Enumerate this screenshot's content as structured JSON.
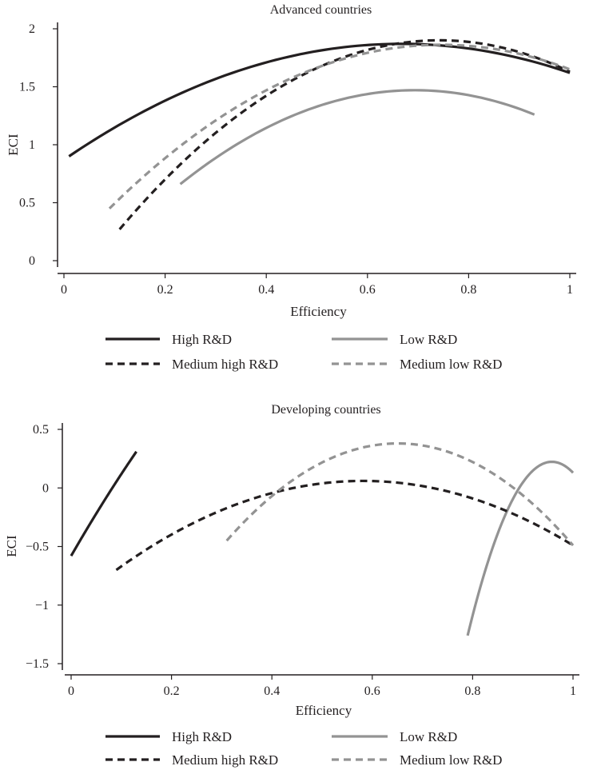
{
  "chart_data": [
    {
      "type": "line",
      "title": "Advanced countries",
      "xlabel": "Efficiency",
      "ylabel": "ECI",
      "xlim": [
        0,
        1
      ],
      "ylim": [
        0,
        2
      ],
      "x_ticks": [
        "0",
        "0.2",
        "0.4",
        "0.6",
        "0.8",
        "1"
      ],
      "x_tick_values": [
        0,
        0.2,
        0.4,
        0.6,
        0.8,
        1
      ],
      "y_ticks": [
        "0",
        "0.5",
        "1",
        "1.5",
        "2"
      ],
      "y_tick_values": [
        0,
        0.5,
        1,
        1.5,
        2
      ],
      "legend": [
        "High R&D",
        "Low R&D",
        "Medium high R&D",
        "Medium low R&D"
      ],
      "series": [
        {
          "name": "High R&D",
          "color": "#231f20",
          "dash": "solid",
          "x_range": [
            0.01,
            1.0
          ],
          "x": [
            0.01,
            0.67,
            1.0
          ],
          "y": [
            0.9,
            1.87,
            1.62
          ]
        },
        {
          "name": "Low R&D",
          "color": "#939393",
          "dash": "solid",
          "x_range": [
            0.23,
            0.93
          ],
          "x": [
            0.23,
            0.7,
            0.93
          ],
          "y": [
            0.66,
            1.47,
            1.26
          ]
        },
        {
          "name": "Medium high R&D",
          "color": "#231f20",
          "dash": "dashed",
          "x_range": [
            0.11,
            1.0
          ],
          "x": [
            0.11,
            0.73,
            1.0
          ],
          "y": [
            0.27,
            1.9,
            1.63
          ]
        },
        {
          "name": "Medium low R&D",
          "color": "#939393",
          "dash": "dashed",
          "x_range": [
            0.09,
            1.0
          ],
          "x": [
            0.09,
            0.72,
            1.0
          ],
          "y": [
            0.45,
            1.86,
            1.65
          ]
        }
      ]
    },
    {
      "type": "line",
      "title": "Developing countries",
      "xlabel": "Efficiency",
      "ylabel": "ECI",
      "xlim": [
        0,
        1
      ],
      "ylim": [
        -1.5,
        0.5
      ],
      "x_ticks": [
        "0",
        "0.2",
        "0.4",
        "0.6",
        "0.8",
        "1"
      ],
      "x_tick_values": [
        0,
        0.2,
        0.4,
        0.6,
        0.8,
        1
      ],
      "y_ticks": [
        "−1.5",
        "−1",
        "−0.5",
        "0",
        "0.5"
      ],
      "y_tick_values": [
        -1.5,
        -1,
        -0.5,
        0,
        0.5
      ],
      "legend": [
        "High R&D",
        "Low R&D",
        "Medium high R&D",
        "Medium low R&D"
      ],
      "series": [
        {
          "name": "High R&D",
          "color": "#231f20",
          "dash": "solid",
          "x_range": [
            0.0,
            0.13
          ],
          "x": [
            0.0,
            0.06,
            0.13
          ],
          "y": [
            -0.58,
            -0.15,
            0.31
          ]
        },
        {
          "name": "Low R&D",
          "color": "#939393",
          "dash": "solid",
          "x_range": [
            0.79,
            1.0
          ],
          "x": [
            0.79,
            0.95,
            1.0
          ],
          "y": [
            -1.26,
            0.22,
            0.13
          ]
        },
        {
          "name": "Medium high R&D",
          "color": "#231f20",
          "dash": "dashed",
          "x_range": [
            0.09,
            1.0
          ],
          "x": [
            0.09,
            0.58,
            1.0
          ],
          "y": [
            -0.7,
            0.06,
            -0.49
          ]
        },
        {
          "name": "Medium low R&D",
          "color": "#939393",
          "dash": "dashed",
          "x_range": [
            0.31,
            1.0
          ],
          "x": [
            0.31,
            0.65,
            1.0
          ],
          "y": [
            -0.45,
            0.38,
            -0.49
          ]
        }
      ]
    }
  ]
}
